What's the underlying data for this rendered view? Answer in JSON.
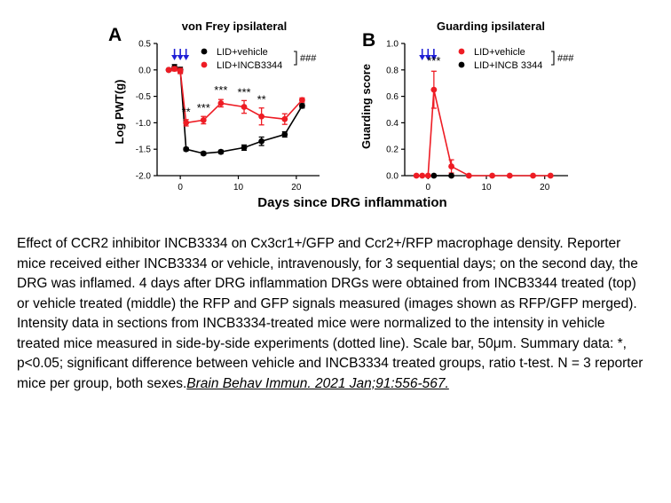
{
  "chart_data": [
    {
      "type": "line",
      "panel_label": "A",
      "title": "von Frey ipsilateral",
      "xlabel": "",
      "ylabel": "Log PWT(g)",
      "xlim": [
        -4,
        24
      ],
      "ylim": [
        -2.0,
        0.5
      ],
      "x_ticks": [
        0,
        10,
        20
      ],
      "x_tick_labels": [
        "0",
        "10",
        "20"
      ],
      "y_ticks": [
        0.5,
        0.0,
        -0.5,
        -1.0,
        -1.5,
        -2.0
      ],
      "y_tick_labels": [
        "0.5",
        "0.0",
        "-0.5",
        "-1.0",
        "-1.5",
        "-2.0"
      ],
      "dosing_arrows_x": [
        -1,
        0,
        1
      ],
      "series": [
        {
          "name": "LID+vehicle",
          "color": "#000000",
          "x": [
            -2,
            -1,
            0,
            1,
            4,
            7,
            11,
            14,
            18,
            21
          ],
          "y": [
            0.0,
            0.05,
            0.0,
            -1.5,
            -1.58,
            -1.55,
            -1.47,
            -1.35,
            -1.22,
            -0.68
          ],
          "err": [
            0.02,
            0.05,
            0.05,
            0.03,
            0.03,
            0.03,
            0.05,
            0.08,
            0.05,
            0.04
          ]
        },
        {
          "name": "LID+INCB3344",
          "color": "#ee1c24",
          "x": [
            -2,
            -1,
            0,
            1,
            4,
            7,
            11,
            14,
            18,
            21
          ],
          "y": [
            0.0,
            0.02,
            -0.02,
            -1.0,
            -0.95,
            -0.63,
            -0.7,
            -0.88,
            -0.93,
            -0.57
          ],
          "err": [
            0.02,
            0.04,
            0.05,
            0.06,
            0.07,
            0.07,
            0.12,
            0.16,
            0.1,
            0.04
          ]
        }
      ],
      "annotations": [
        {
          "text": "**",
          "x": 1,
          "y": -0.87
        },
        {
          "text": "***",
          "x": 4,
          "y": -0.79
        },
        {
          "text": "***",
          "x": 7,
          "y": -0.46
        },
        {
          "text": "***",
          "x": 11,
          "y": -0.5
        },
        {
          "text": "**",
          "x": 14,
          "y": -0.63
        }
      ],
      "legend_position": "top-right",
      "significance": "###"
    },
    {
      "type": "line",
      "panel_label": "B",
      "title": "Guarding ipsilateral",
      "xlabel": "",
      "ylabel": "Guarding score",
      "xlim": [
        -4,
        24
      ],
      "ylim": [
        0.0,
        1.0
      ],
      "x_ticks": [
        0,
        10,
        20
      ],
      "x_tick_labels": [
        "0",
        "10",
        "20"
      ],
      "y_ticks": [
        0.0,
        0.2,
        0.4,
        0.6,
        0.8,
        1.0
      ],
      "y_tick_labels": [
        "0.0",
        "0.2",
        "0.4",
        "0.6",
        "0.8",
        "1.0"
      ],
      "dosing_arrows_x": [
        -1,
        0,
        1
      ],
      "series": [
        {
          "name": "LID+vehicle",
          "color": "#ee1c24",
          "x": [
            -2,
            -1,
            0,
            1,
            4,
            7,
            11,
            14,
            18,
            21
          ],
          "y": [
            0,
            0,
            0,
            0.65,
            0.07,
            0,
            0,
            0,
            0,
            0
          ],
          "err": [
            0,
            0,
            0,
            0.14,
            0.05,
            0,
            0,
            0,
            0,
            0
          ]
        },
        {
          "name": "LID+INCB 3344",
          "color": "#000000",
          "x": [
            1,
            4
          ],
          "y": [
            0,
            0
          ],
          "err": [
            0,
            0
          ]
        }
      ],
      "annotations": [
        {
          "text": "***",
          "x": 1,
          "y": 0.84
        }
      ],
      "legend_position": "top-right",
      "significance": "###"
    }
  ],
  "shared_xlabel": "Days since DRG inflammation",
  "caption": {
    "text": "Effect of CCR2 inhibitor INCB3334 on Cx3cr1+/GFP and Ccr2+/RFP macrophage density. Reporter mice received either INCB3334 or vehicle, intravenously, for 3 sequential days; on the second day, the DRG was inflamed. 4 days after DRG inflammation DRGs were obtained from INCB3344 treated (top) or vehicle treated (middle) the RFP and GFP signals measured (images shown as RFP/GFP merged). Intensity data in sections from INCB3334-treated mice were normalized to the intensity in vehicle treated mice measured in side-by-side experiments (dotted line). Scale bar, 50μm. Summary data: *, p<0.05; significant difference between vehicle and INCB3334 treated groups, ratio t-test. N = 3 reporter mice per group, both sexes.",
    "citation": "Brain Behav Immun. 2021 Jan;91:556-567."
  },
  "colors": {
    "red": "#ee1c24",
    "black": "#000000",
    "arrow_blue": "#1f1fd6"
  }
}
